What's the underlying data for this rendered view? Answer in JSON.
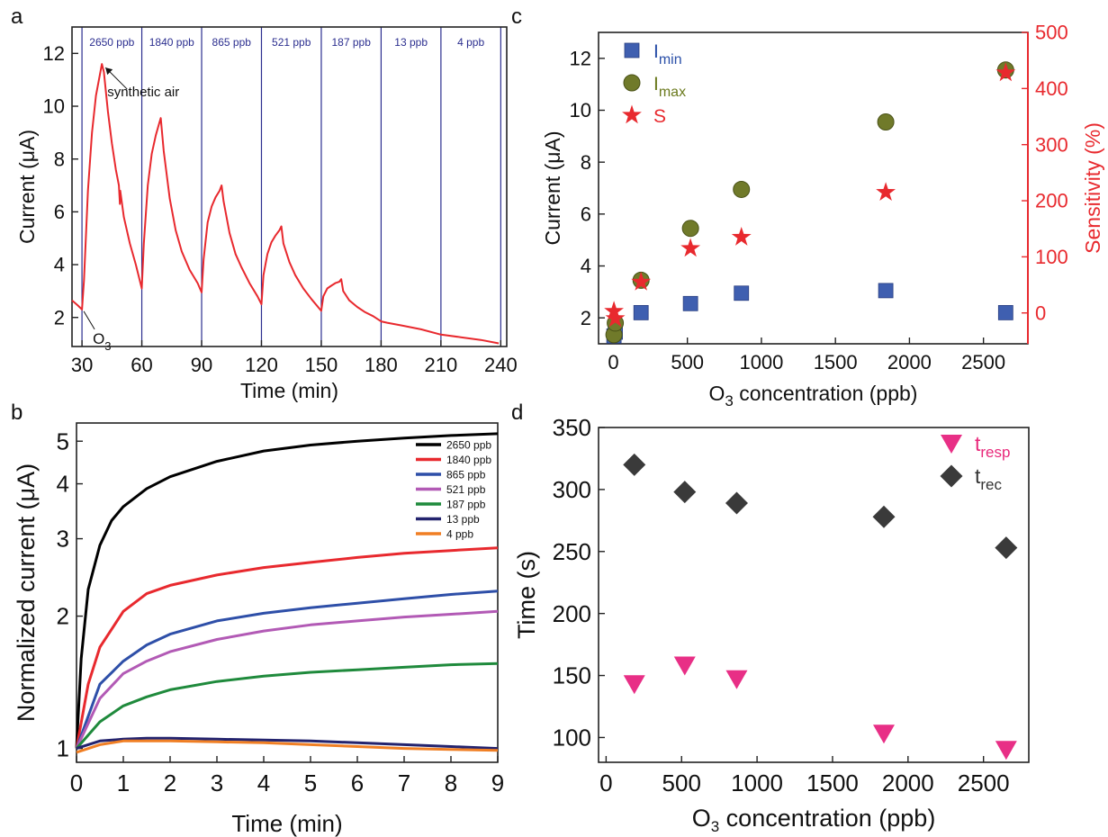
{
  "chart_data": [
    {
      "panel": "a",
      "type": "line",
      "xlabel": "Time (min)",
      "ylabel": "Current (μA)",
      "xlim": [
        25,
        243
      ],
      "ylim": [
        0.9,
        13
      ],
      "xticks": [
        30,
        60,
        90,
        120,
        150,
        180,
        210,
        240
      ],
      "yticks": [
        2,
        4,
        6,
        8,
        10,
        12
      ],
      "line_color": "#e8292e",
      "segment_color": "#2b2e8f",
      "segment_lines": [
        30,
        60,
        90,
        120,
        150,
        180,
        210,
        240
      ],
      "segment_labels": [
        {
          "label": "2650 ppb",
          "x": 45
        },
        {
          "label": "1840 ppb",
          "x": 75
        },
        {
          "label": "865 ppb",
          "x": 105
        },
        {
          "label": "521 ppb",
          "x": 135
        },
        {
          "label": "187 ppb",
          "x": 165
        },
        {
          "label": "13 ppb",
          "x": 195
        },
        {
          "label": "4 ppb",
          "x": 225
        }
      ],
      "annotations": [
        {
          "text": "synthetic air",
          "x": 40,
          "y": 11.6
        },
        {
          "text": "O",
          "subscript": "3",
          "x": 30,
          "y": 2.3
        }
      ],
      "series": [
        {
          "points": [
            [
              25,
              2.65
            ],
            [
              28,
              2.45
            ],
            [
              30,
              2.3
            ],
            [
              31,
              3.4
            ],
            [
              33,
              6.8
            ],
            [
              35,
              9.0
            ],
            [
              37,
              10.4
            ],
            [
              39,
              11.2
            ],
            [
              40,
              11.6
            ],
            [
              41,
              11.3
            ],
            [
              43,
              9.8
            ],
            [
              45,
              8.6
            ],
            [
              47,
              7.6
            ],
            [
              48.5,
              7.0
            ],
            [
              49,
              6.3
            ],
            [
              49.2,
              6.8
            ],
            [
              51,
              5.8
            ],
            [
              54,
              4.8
            ],
            [
              57,
              4.0
            ],
            [
              60,
              3.1
            ],
            [
              61,
              4.8
            ],
            [
              63,
              7.0
            ],
            [
              65,
              8.2
            ],
            [
              67,
              8.9
            ],
            [
              68.5,
              9.3
            ],
            [
              69.5,
              9.55
            ],
            [
              71,
              8.3
            ],
            [
              74,
              6.5
            ],
            [
              77,
              5.3
            ],
            [
              80,
              4.5
            ],
            [
              84,
              3.8
            ],
            [
              88,
              3.3
            ],
            [
              90,
              2.95
            ],
            [
              91,
              4.2
            ],
            [
              93,
              5.6
            ],
            [
              95,
              6.2
            ],
            [
              97,
              6.55
            ],
            [
              99,
              6.8
            ],
            [
              100,
              7.0
            ],
            [
              101,
              6.4
            ],
            [
              104,
              5.2
            ],
            [
              107,
              4.4
            ],
            [
              110,
              3.9
            ],
            [
              114,
              3.3
            ],
            [
              118,
              2.8
            ],
            [
              120,
              2.5
            ],
            [
              121,
              3.6
            ],
            [
              123,
              4.4
            ],
            [
              125,
              4.85
            ],
            [
              127,
              5.1
            ],
            [
              129,
              5.3
            ],
            [
              130,
              5.45
            ],
            [
              131,
              4.8
            ],
            [
              134,
              4.1
            ],
            [
              137,
              3.6
            ],
            [
              141,
              3.1
            ],
            [
              145,
              2.7
            ],
            [
              150,
              2.25
            ],
            [
              151,
              2.8
            ],
            [
              153,
              3.1
            ],
            [
              155,
              3.2
            ],
            [
              157,
              3.3
            ],
            [
              159,
              3.35
            ],
            [
              160,
              3.45
            ],
            [
              161,
              3.0
            ],
            [
              164,
              2.65
            ],
            [
              168,
              2.4
            ],
            [
              172,
              2.2
            ],
            [
              176,
              2.05
            ],
            [
              180,
              1.85
            ],
            [
              183,
              1.8
            ],
            [
              190,
              1.7
            ],
            [
              200,
              1.55
            ],
            [
              210,
              1.35
            ],
            [
              220,
              1.25
            ],
            [
              230,
              1.15
            ],
            [
              239,
              1.02
            ]
          ]
        }
      ]
    },
    {
      "panel": "b",
      "type": "line",
      "xlabel": "Time (min)",
      "ylabel": "Normalized current (μA)",
      "y_scale": "log",
      "xlim": [
        0,
        9
      ],
      "ylim": [
        0.93,
        5.5
      ],
      "xticks": [
        0,
        1,
        2,
        3,
        4,
        5,
        6,
        7,
        8,
        9
      ],
      "yticks": [
        1,
        2,
        3,
        4,
        5
      ],
      "legend_position": "top-right",
      "series": [
        {
          "name": "2650 ppb",
          "color": "#000000",
          "points": [
            [
              0,
              1.0
            ],
            [
              0.1,
              1.6
            ],
            [
              0.25,
              2.3
            ],
            [
              0.5,
              2.9
            ],
            [
              0.75,
              3.3
            ],
            [
              1,
              3.55
            ],
            [
              1.5,
              3.9
            ],
            [
              2,
              4.15
            ],
            [
              3,
              4.5
            ],
            [
              4,
              4.75
            ],
            [
              5,
              4.9
            ],
            [
              6,
              5.0
            ],
            [
              7,
              5.08
            ],
            [
              8,
              5.15
            ],
            [
              9,
              5.2
            ]
          ]
        },
        {
          "name": "1840 ppb",
          "color": "#e8292e",
          "points": [
            [
              0,
              1.0
            ],
            [
              0.25,
              1.4
            ],
            [
              0.5,
              1.7
            ],
            [
              1,
              2.05
            ],
            [
              1.5,
              2.25
            ],
            [
              2,
              2.35
            ],
            [
              3,
              2.48
            ],
            [
              4,
              2.58
            ],
            [
              5,
              2.65
            ],
            [
              6,
              2.72
            ],
            [
              7,
              2.78
            ],
            [
              8,
              2.82
            ],
            [
              9,
              2.86
            ]
          ]
        },
        {
          "name": "865 ppb",
          "color": "#2e4fa8",
          "points": [
            [
              0,
              1.0
            ],
            [
              0.5,
              1.4
            ],
            [
              1,
              1.58
            ],
            [
              1.5,
              1.72
            ],
            [
              2,
              1.82
            ],
            [
              3,
              1.95
            ],
            [
              4,
              2.03
            ],
            [
              5,
              2.09
            ],
            [
              6,
              2.14
            ],
            [
              7,
              2.19
            ],
            [
              8,
              2.24
            ],
            [
              9,
              2.28
            ]
          ]
        },
        {
          "name": "521 ppb",
          "color": "#b25ab5",
          "points": [
            [
              0,
              1.0
            ],
            [
              0.5,
              1.3
            ],
            [
              1,
              1.48
            ],
            [
              1.5,
              1.58
            ],
            [
              2,
              1.66
            ],
            [
              3,
              1.77
            ],
            [
              4,
              1.85
            ],
            [
              5,
              1.91
            ],
            [
              6,
              1.95
            ],
            [
              7,
              1.99
            ],
            [
              8,
              2.02
            ],
            [
              9,
              2.05
            ]
          ]
        },
        {
          "name": "187 ppb",
          "color": "#1f8a3c",
          "points": [
            [
              0,
              1.0
            ],
            [
              0.5,
              1.15
            ],
            [
              1,
              1.25
            ],
            [
              1.5,
              1.31
            ],
            [
              2,
              1.36
            ],
            [
              3,
              1.42
            ],
            [
              4,
              1.46
            ],
            [
              5,
              1.49
            ],
            [
              6,
              1.51
            ],
            [
              7,
              1.53
            ],
            [
              8,
              1.55
            ],
            [
              9,
              1.56
            ]
          ]
        },
        {
          "name": "13 ppb",
          "color": "#23236e",
          "points": [
            [
              0,
              1.0
            ],
            [
              0.5,
              1.04
            ],
            [
              1,
              1.05
            ],
            [
              1.5,
              1.055
            ],
            [
              2,
              1.055
            ],
            [
              3,
              1.05
            ],
            [
              4,
              1.045
            ],
            [
              5,
              1.04
            ],
            [
              6,
              1.03
            ],
            [
              7,
              1.02
            ],
            [
              8,
              1.01
            ],
            [
              9,
              1.0
            ]
          ]
        },
        {
          "name": "4 ppb",
          "color": "#f07f24",
          "points": [
            [
              0,
              0.98
            ],
            [
              0.5,
              1.02
            ],
            [
              1,
              1.04
            ],
            [
              1.5,
              1.04
            ],
            [
              2,
              1.04
            ],
            [
              3,
              1.035
            ],
            [
              4,
              1.03
            ],
            [
              5,
              1.02
            ],
            [
              6,
              1.01
            ],
            [
              7,
              1.0
            ],
            [
              8,
              0.995
            ],
            [
              9,
              0.99
            ]
          ]
        }
      ]
    },
    {
      "panel": "c",
      "type": "scatter",
      "xlabel": "O3 concentration (ppb)",
      "ylabel": "Current (μA)",
      "y2label": "Sensitivity (%)",
      "xlim": [
        -100,
        2800
      ],
      "ylim": [
        1,
        13
      ],
      "y2lim": [
        -55,
        500
      ],
      "xticks": [
        0,
        500,
        1000,
        1500,
        2000,
        2500
      ],
      "yticks": [
        2,
        4,
        6,
        8,
        10,
        12
      ],
      "y2ticks": [
        0,
        100,
        200,
        300,
        400,
        500
      ],
      "y2_color": "#e8292e",
      "legend_position": "top-left",
      "series": [
        {
          "name": "I",
          "subscript": "min",
          "label_color": "#2a4fa8",
          "color": "#3f5fb0",
          "marker": "square",
          "axis": "left",
          "points": [
            [
              4,
              1.3
            ],
            [
              13,
              1.45
            ],
            [
              187,
              2.2
            ],
            [
              521,
              2.55
            ],
            [
              865,
              2.95
            ],
            [
              1840,
              3.05
            ],
            [
              2650,
              2.2
            ]
          ]
        },
        {
          "name": "I",
          "subscript": "max",
          "label_color": "#6b7a1e",
          "color": "#707a2a",
          "marker": "circle",
          "axis": "left",
          "points": [
            [
              4,
              1.35
            ],
            [
              13,
              1.8
            ],
            [
              187,
              3.45
            ],
            [
              521,
              5.45
            ],
            [
              865,
              6.95
            ],
            [
              1840,
              9.55
            ],
            [
              2650,
              11.55
            ]
          ]
        },
        {
          "name": "S",
          "label_color": "#e8292e",
          "color": "#e8292e",
          "marker": "star",
          "axis": "right",
          "points": [
            [
              4,
              3
            ],
            [
              13,
              -10
            ],
            [
              187,
              55
            ],
            [
              521,
              115
            ],
            [
              865,
              135
            ],
            [
              1840,
              215
            ],
            [
              2650,
              428
            ]
          ]
        }
      ]
    },
    {
      "panel": "d",
      "type": "scatter",
      "xlabel": "O3 concentration (ppb)",
      "ylabel": "Time (s)",
      "xlim": [
        -50,
        2800
      ],
      "ylim": [
        80,
        350
      ],
      "xticks": [
        0,
        500,
        1000,
        1500,
        2000,
        2500
      ],
      "yticks": [
        100,
        150,
        200,
        250,
        300,
        350
      ],
      "legend_position": "top-right",
      "series": [
        {
          "name": "t",
          "subscript": "resp",
          "label_color": "#e8287a",
          "color": "#e82f86",
          "marker": "triangle-down",
          "points": [
            [
              187,
              143
            ],
            [
              521,
              158
            ],
            [
              865,
              147
            ],
            [
              1840,
              103
            ],
            [
              2650,
              90
            ]
          ]
        },
        {
          "name": "t",
          "subscript": "rec",
          "label_color": "#333333",
          "color": "#3a3a3a",
          "marker": "diamond",
          "points": [
            [
              187,
              320
            ],
            [
              521,
              298
            ],
            [
              865,
              289
            ],
            [
              1840,
              278
            ],
            [
              2650,
              253
            ]
          ]
        }
      ]
    }
  ]
}
